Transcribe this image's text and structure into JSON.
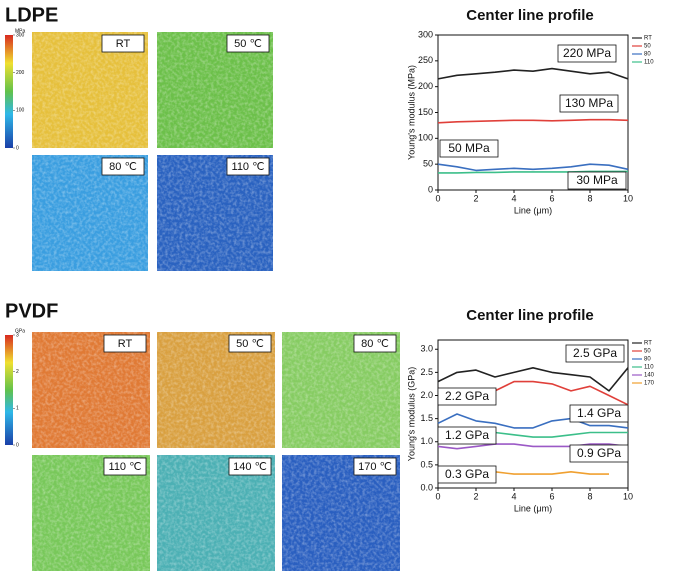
{
  "chart_data": [
    {
      "type": "heatmap-grid",
      "title": "LDPE",
      "panels": [
        "RT",
        "50 ℃",
        "80 ℃",
        "110 ℃"
      ],
      "colorbar_label": "MPa",
      "clim": [
        0,
        300
      ],
      "cticks": [
        0,
        100,
        200,
        300
      ]
    },
    {
      "type": "line",
      "title": "Center line profile",
      "x_label": "Line (μm)",
      "y_label": "Young's modulus (MPa)",
      "xlim": [
        0,
        10
      ],
      "xticks": [
        0,
        2,
        4,
        6,
        8,
        10
      ],
      "ylim": [
        0,
        300
      ],
      "yticks": [
        0,
        50,
        100,
        150,
        200,
        250,
        300
      ],
      "x": [
        0,
        1,
        2,
        3,
        4,
        5,
        6,
        7,
        8,
        9,
        10
      ],
      "series": [
        {
          "name": "RT",
          "color": "#222222",
          "values": [
            215,
            222,
            225,
            228,
            232,
            230,
            235,
            230,
            225,
            228,
            215
          ]
        },
        {
          "name": "50",
          "color": "#e0403a",
          "values": [
            130,
            132,
            133,
            134,
            135,
            135,
            134,
            135,
            136,
            136,
            135
          ]
        },
        {
          "name": "80",
          "color": "#3a6fc0",
          "values": [
            50,
            45,
            38,
            40,
            42,
            40,
            42,
            45,
            50,
            48,
            40
          ]
        },
        {
          "name": "110",
          "color": "#3cbf8a",
          "values": [
            33,
            33,
            34,
            34,
            35,
            35,
            35,
            35,
            36,
            36,
            36
          ]
        }
      ],
      "annotations": [
        "220 MPa",
        "130 MPa",
        "50 MPa",
        "30 MPa"
      ]
    },
    {
      "type": "heatmap-grid",
      "title": "PVDF",
      "panels": [
        "RT",
        "50 ℃",
        "80 ℃",
        "110 ℃",
        "140 ℃",
        "170 ℃"
      ],
      "colorbar_label": "GPa",
      "clim": [
        0,
        3
      ],
      "cticks": [
        0,
        1,
        2,
        3
      ]
    },
    {
      "type": "line",
      "title": "Center line profile",
      "x_label": "Line (μm)",
      "y_label": "Young's modulus (GPa)",
      "xlim": [
        0,
        10
      ],
      "xticks": [
        0,
        2,
        4,
        6,
        8,
        10
      ],
      "ylim": [
        0,
        3.2
      ],
      "yticks": [
        {
          "value": 0,
          "label": "0.0"
        },
        0.5,
        {
          "value": 1,
          "label": "1.0"
        },
        1.5,
        {
          "value": 2,
          "label": "2.0"
        },
        2.5,
        {
          "value": 3,
          "label": "3.0"
        }
      ],
      "x": [
        0,
        1,
        2,
        3,
        4,
        5,
        6,
        7,
        8,
        9,
        10
      ],
      "series": [
        {
          "name": "RT",
          "color": "#222222",
          "values": [
            2.3,
            2.5,
            2.55,
            2.4,
            2.5,
            2.6,
            2.5,
            2.45,
            2.4,
            2.1,
            2.6
          ]
        },
        {
          "name": "50",
          "color": "#e0403a",
          "values": [
            2.15,
            2.1,
            2.0,
            2.1,
            2.3,
            2.3,
            2.25,
            2.1,
            2.2,
            2.0,
            1.8
          ]
        },
        {
          "name": "80",
          "color": "#3a6fc0",
          "values": [
            1.4,
            1.6,
            1.45,
            1.4,
            1.3,
            1.3,
            1.45,
            1.5,
            1.35,
            1.35,
            1.3
          ]
        },
        {
          "name": "110",
          "color": "#3cbf8a",
          "values": [
            1.2,
            1.15,
            1.2,
            1.2,
            1.15,
            1.1,
            1.1,
            1.15,
            1.2,
            1.2,
            1.2
          ]
        },
        {
          "name": "140",
          "color": "#9b59c6",
          "values": [
            0.9,
            0.85,
            0.9,
            0.95,
            0.95,
            0.9,
            0.9,
            0.9,
            0.95,
            0.95,
            0.9
          ]
        },
        {
          "name": "170",
          "color": "#f0a030",
          "values": [
            null,
            null,
            0.3,
            0.35,
            0.3,
            0.3,
            0.3,
            0.35,
            0.3,
            0.3,
            null
          ]
        }
      ],
      "annotations": [
        "2.5 GPa",
        "2.2 GPa",
        "1.4 GPa",
        "1.2 GPa",
        "0.9 GPa",
        "0.3 GPa"
      ]
    }
  ]
}
